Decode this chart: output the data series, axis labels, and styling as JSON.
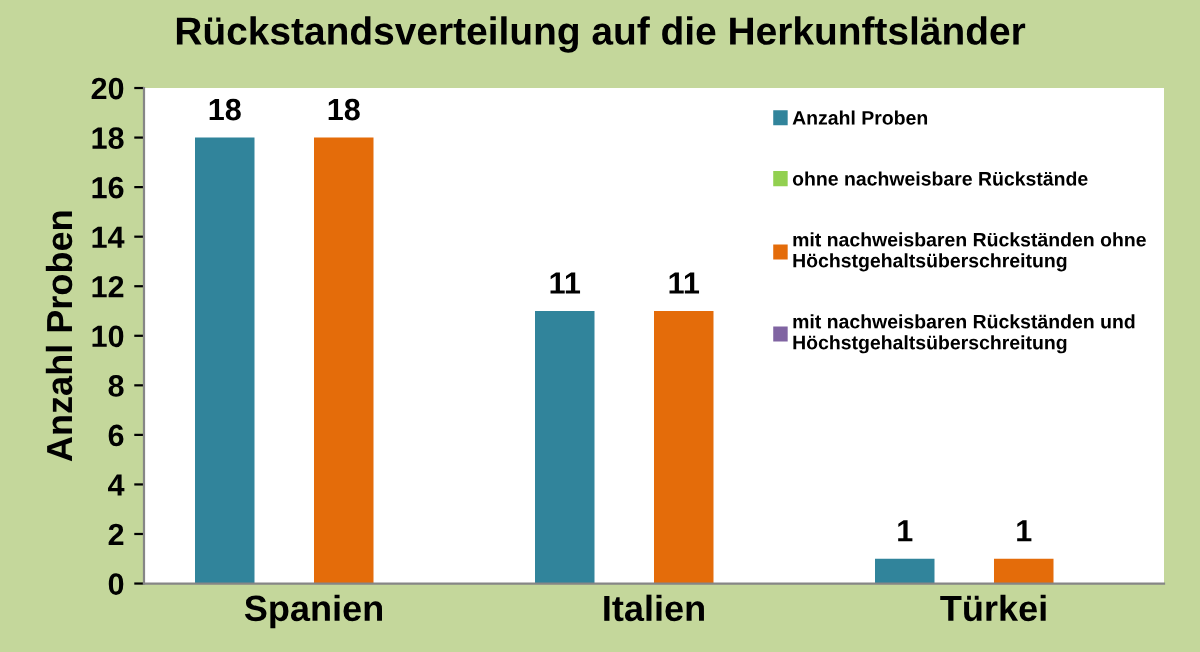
{
  "chart_data": {
    "type": "bar",
    "title": "Rückstandsverteilung auf die Herkunftsländer",
    "ylabel": "Anzahl Proben",
    "categories": [
      "Spanien",
      "Italien",
      "Türkei"
    ],
    "series": [
      {
        "name": "Anzahl Proben",
        "color": "#31849b",
        "values": [
          18,
          11,
          1
        ],
        "value_labels": [
          "18",
          "11",
          "1"
        ]
      },
      {
        "name": "ohne nachweisbare Rückstände",
        "color": "#92d050",
        "values": [
          0,
          0,
          0
        ]
      },
      {
        "name": "mit nachweisbaren Rückständen ohne\nHöchstgehaltsüberschreitung",
        "color": "#e46c0a",
        "values": [
          18,
          11,
          1
        ],
        "value_labels": [
          "18",
          "11",
          "1"
        ]
      },
      {
        "name": "mit nachweisbaren Rückständen und\nHöchstgehaltsüberschreitung",
        "color": "#8064a2",
        "values": [
          0,
          0,
          0
        ]
      }
    ],
    "ylim": [
      0,
      20
    ],
    "yticks": [
      0,
      2,
      4,
      6,
      8,
      10,
      12,
      14,
      16,
      18,
      20
    ],
    "grid": false,
    "legend": "right"
  }
}
